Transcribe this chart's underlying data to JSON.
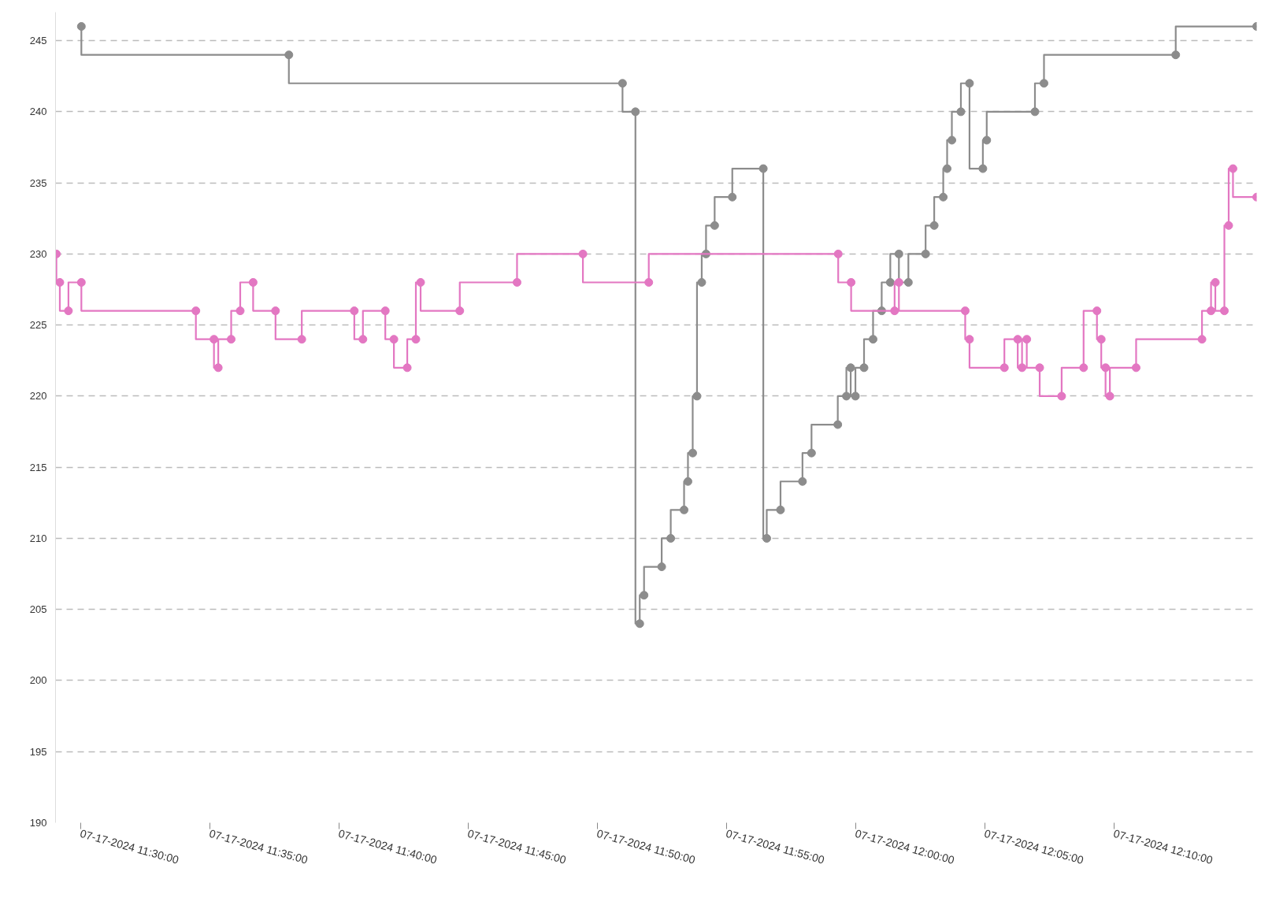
{
  "chart_data": {
    "type": "step",
    "marker": "circle",
    "line_style": "solid",
    "grid": "y",
    "xlim": [
      "2024-07-17T11:29:02",
      "2024-07-17T12:15:32"
    ],
    "xticks": [
      {
        "value": "2024-07-17T11:30:00",
        "label": "07-17-2024 11:30:00"
      },
      {
        "value": "2024-07-17T11:35:00",
        "label": "07-17-2024 11:35:00"
      },
      {
        "value": "2024-07-17T11:40:00",
        "label": "07-17-2024 11:40:00"
      },
      {
        "value": "2024-07-17T11:45:00",
        "label": "07-17-2024 11:45:00"
      },
      {
        "value": "2024-07-17T11:50:00",
        "label": "07-17-2024 11:50:00"
      },
      {
        "value": "2024-07-17T11:55:00",
        "label": "07-17-2024 11:55:00"
      },
      {
        "value": "2024-07-17T12:00:00",
        "label": "07-17-2024 12:00:00"
      },
      {
        "value": "2024-07-17T12:05:00",
        "label": "07-17-2024 12:05:00"
      },
      {
        "value": "2024-07-17T12:10:00",
        "label": "07-17-2024 12:10:00"
      }
    ],
    "ylim": [
      190,
      247
    ],
    "yticks": [
      190,
      195,
      200,
      205,
      210,
      215,
      220,
      225,
      230,
      235,
      240,
      245
    ],
    "series": [
      {
        "color": "#8c8c8c",
        "x": [
          "2024-07-17T11:30:02",
          "2024-07-17T11:38:04",
          "2024-07-17T11:50:59",
          "2024-07-17T11:51:29",
          "2024-07-17T11:51:39",
          "2024-07-17T11:51:49",
          "2024-07-17T11:52:30",
          "2024-07-17T11:52:51",
          "2024-07-17T11:53:22",
          "2024-07-17T11:53:31",
          "2024-07-17T11:53:42",
          "2024-07-17T11:53:52",
          "2024-07-17T11:54:03",
          "2024-07-17T11:54:13",
          "2024-07-17T11:54:33",
          "2024-07-17T11:55:14",
          "2024-07-17T11:56:26",
          "2024-07-17T11:56:34",
          "2024-07-17T11:57:06",
          "2024-07-17T11:57:57",
          "2024-07-17T11:58:18",
          "2024-07-17T11:59:19",
          "2024-07-17T11:59:39",
          "2024-07-17T11:59:49",
          "2024-07-17T12:00:00",
          "2024-07-17T12:00:20",
          "2024-07-17T12:00:41",
          "2024-07-17T12:01:01",
          "2024-07-17T12:01:21",
          "2024-07-17T12:01:41",
          "2024-07-17T12:02:03",
          "2024-07-17T12:02:43",
          "2024-07-17T12:03:03",
          "2024-07-17T12:03:24",
          "2024-07-17T12:03:33",
          "2024-07-17T12:03:44",
          "2024-07-17T12:04:05",
          "2024-07-17T12:04:25",
          "2024-07-17T12:04:56",
          "2024-07-17T12:05:05",
          "2024-07-17T12:06:57",
          "2024-07-17T12:07:18",
          "2024-07-17T12:12:24",
          "2024-07-17T12:15:32"
        ],
        "values": [
          246,
          244,
          242,
          240,
          204,
          206,
          208,
          210,
          212,
          214,
          216,
          220,
          228,
          230,
          232,
          234,
          236,
          210,
          212,
          214,
          216,
          218,
          220,
          222,
          220,
          222,
          224,
          226,
          228,
          230,
          228,
          230,
          232,
          234,
          236,
          238,
          240,
          242,
          236,
          238,
          240,
          242,
          244,
          246
        ]
      },
      {
        "color": "#e377c2",
        "x": [
          "2024-07-17T11:29:04",
          "2024-07-17T11:29:12",
          "2024-07-17T11:29:32",
          "2024-07-17T11:30:02",
          "2024-07-17T11:34:28",
          "2024-07-17T11:35:10",
          "2024-07-17T11:35:20",
          "2024-07-17T11:35:50",
          "2024-07-17T11:36:11",
          "2024-07-17T11:36:41",
          "2024-07-17T11:37:33",
          "2024-07-17T11:38:34",
          "2024-07-17T11:40:36",
          "2024-07-17T11:40:56",
          "2024-07-17T11:41:48",
          "2024-07-17T11:42:08",
          "2024-07-17T11:42:39",
          "2024-07-17T11:42:59",
          "2024-07-17T11:43:10",
          "2024-07-17T11:44:41",
          "2024-07-17T11:46:54",
          "2024-07-17T11:49:27",
          "2024-07-17T11:52:00",
          "2024-07-17T11:59:20",
          "2024-07-17T11:59:50",
          "2024-07-17T12:01:31",
          "2024-07-17T12:01:41",
          "2024-07-17T12:04:15",
          "2024-07-17T12:04:25",
          "2024-07-17T12:05:46",
          "2024-07-17T12:06:17",
          "2024-07-17T12:06:27",
          "2024-07-17T12:06:38",
          "2024-07-17T12:07:08",
          "2024-07-17T12:07:59",
          "2024-07-17T12:08:50",
          "2024-07-17T12:09:21",
          "2024-07-17T12:09:31",
          "2024-07-17T12:09:41",
          "2024-07-17T12:09:51",
          "2024-07-17T12:10:52",
          "2024-07-17T12:13:25",
          "2024-07-17T12:13:46",
          "2024-07-17T12:13:56",
          "2024-07-17T12:14:17",
          "2024-07-17T12:14:27",
          "2024-07-17T12:14:37",
          "2024-07-17T12:15:32"
        ],
        "values": [
          230,
          228,
          226,
          228,
          226,
          224,
          222,
          224,
          226,
          228,
          226,
          224,
          226,
          224,
          226,
          224,
          222,
          224,
          228,
          226,
          228,
          230,
          228,
          230,
          228,
          226,
          228,
          226,
          224,
          222,
          224,
          222,
          224,
          222,
          220,
          222,
          226,
          224,
          222,
          220,
          222,
          224,
          226,
          228,
          226,
          232,
          236,
          234
        ]
      }
    ]
  }
}
